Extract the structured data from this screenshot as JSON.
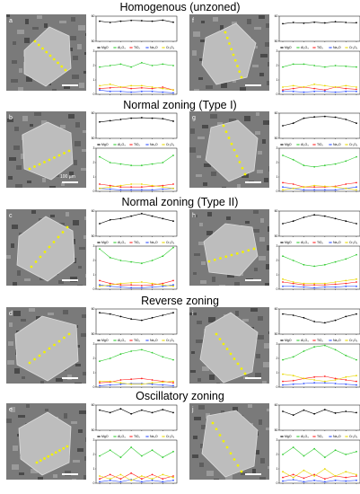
{
  "headings": {
    "homogenous": "Homogenous (unzoned)",
    "normal_type1": "Normal zoning (Type I)",
    "normal_type2": "Normal zoning (Type II)",
    "reverse": "Reverse zoning",
    "oscillatory": "Oscillatory zoning"
  },
  "colors": {
    "MgO": "#000000",
    "Al2O3": "#33cc33",
    "TiO2": "#ff2020",
    "Na2O": "#2f4fff",
    "Cr2O3": "#e8d800",
    "traverse": "#f2f200",
    "scale_bar": "#ffffff",
    "crystal": "#bdbdbd"
  },
  "legend": {
    "MgO": "MgO",
    "Al2O3": "Al₂O₃",
    "TiO2": "TiO₂",
    "Na2O": "Na₂O",
    "Cr2O3": "Cr₂O₃"
  },
  "panels": [
    {
      "label": "a",
      "extra": ""
    },
    {
      "label": "f",
      "extra": ""
    },
    {
      "label": "b",
      "extra": "100 µm"
    },
    {
      "label": "g",
      "extra": ""
    },
    {
      "label": "c",
      "extra": ""
    },
    {
      "label": "h",
      "extra": ""
    },
    {
      "label": "d",
      "extra": ""
    },
    {
      "label": "i",
      "extra": ""
    },
    {
      "label": "e",
      "extra": ""
    },
    {
      "label": "j",
      "extra": ""
    }
  ],
  "chart_data": [
    {
      "type": "line",
      "panel": "a",
      "top": {
        "ylim": [
          50,
          60
        ],
        "yticks": [
          "50",
          "60"
        ],
        "series": [
          {
            "name": "MgO",
            "values": [
              58,
              57.5,
              58,
              58.3,
              58.2,
              58,
              58.4,
              57.6
            ]
          }
        ]
      },
      "bottom": {
        "ylim": [
          0,
          3
        ],
        "yticks": [
          "0",
          "1",
          "2",
          "3"
        ],
        "series": [
          {
            "name": "Al₂O₃",
            "values": [
              1.9,
              2.0,
              2.1,
              1.9,
              2.2,
              2.0,
              2.1,
              2.0
            ]
          },
          {
            "name": "TiO₂",
            "values": [
              0.4,
              0.45,
              0.5,
              0.4,
              0.45,
              0.4,
              0.5,
              0.3
            ]
          },
          {
            "name": "Na₂O",
            "values": [
              0.3,
              0.2,
              0.2,
              0.15,
              0.2,
              0.2,
              0.15,
              0.1
            ]
          },
          {
            "name": "Cr₂O₃",
            "values": [
              0.6,
              0.7,
              0.5,
              0.6,
              0.6,
              0.5,
              0.4,
              0.3
            ]
          }
        ]
      }
    },
    {
      "type": "line",
      "panel": "f",
      "top": {
        "ylim": [
          50,
          60
        ],
        "yticks": [
          "50",
          "60"
        ],
        "series": [
          {
            "name": "MgO",
            "values": [
              57,
              57.5,
              57.2,
              57.6,
              57.3,
              57.8,
              57.5,
              57.4
            ]
          }
        ]
      },
      "bottom": {
        "ylim": [
          0,
          3
        ],
        "yticks": [
          "0",
          "1",
          "2",
          "3"
        ],
        "series": [
          {
            "name": "Al₂O₃",
            "values": [
              1.9,
              2.1,
              2.1,
              2.0,
              1.9,
              2.0,
              1.95,
              1.9
            ]
          },
          {
            "name": "TiO₂",
            "values": [
              0.3,
              0.4,
              0.5,
              0.4,
              0.3,
              0.5,
              0.4,
              0.35
            ]
          },
          {
            "name": "Na₂O",
            "values": [
              0.2,
              0.2,
              0.15,
              0.2,
              0.2,
              0.15,
              0.2,
              0.2
            ]
          },
          {
            "name": "Cr₂O₃",
            "values": [
              0.5,
              0.6,
              0.5,
              0.7,
              0.6,
              0.5,
              0.6,
              0.5
            ]
          }
        ]
      }
    },
    {
      "type": "line",
      "panel": "b",
      "top": {
        "ylim": [
          50,
          60
        ],
        "yticks": [
          "50",
          "60"
        ],
        "series": [
          {
            "name": "MgO",
            "values": [
              56.5,
              57,
              57.5,
              58,
              58.2,
              58,
              57.8,
              56.8
            ]
          }
        ]
      },
      "bottom": {
        "ylim": [
          0,
          3
        ],
        "yticks": [
          "0",
          "1",
          "2",
          "3"
        ],
        "series": [
          {
            "name": "Al₂O₃",
            "values": [
              2.4,
              2.0,
              1.9,
              1.8,
              1.8,
              1.9,
              2.0,
              2.5
            ]
          },
          {
            "name": "TiO₂",
            "values": [
              0.5,
              0.4,
              0.3,
              0.3,
              0.3,
              0.35,
              0.4,
              0.5
            ]
          },
          {
            "name": "Na₂O",
            "values": [
              0.2,
              0.15,
              0.1,
              0.1,
              0.1,
              0.1,
              0.15,
              0.2
            ]
          },
          {
            "name": "Cr₂O₃",
            "values": [
              0.2,
              0.3,
              0.4,
              0.5,
              0.5,
              0.4,
              0.3,
              0.2
            ]
          }
        ]
      }
    },
    {
      "type": "line",
      "panel": "g",
      "top": {
        "ylim": [
          50,
          60
        ],
        "yticks": [
          "50",
          "60"
        ],
        "series": [
          {
            "name": "MgO",
            "values": [
              55,
              56,
              58,
              58.5,
              58.7,
              58.4,
              57.5,
              56
            ]
          }
        ]
      },
      "bottom": {
        "ylim": [
          0,
          3
        ],
        "yticks": [
          "0",
          "1",
          "2",
          "3"
        ],
        "series": [
          {
            "name": "Al₂O₃",
            "values": [
              2.5,
              2.2,
              1.8,
              1.7,
              1.8,
              1.9,
              2.1,
              2.4
            ]
          },
          {
            "name": "TiO₂",
            "values": [
              0.6,
              0.5,
              0.3,
              0.3,
              0.3,
              0.35,
              0.5,
              0.6
            ]
          },
          {
            "name": "Na₂O",
            "values": [
              0.3,
              0.2,
              0.1,
              0.1,
              0.1,
              0.1,
              0.2,
              0.3
            ]
          },
          {
            "name": "Cr₂O₃",
            "values": [
              0.1,
              0.2,
              0.3,
              0.4,
              0.35,
              0.3,
              0.2,
              0.1
            ]
          }
        ]
      }
    },
    {
      "type": "line",
      "panel": "c",
      "top": {
        "ylim": [
          50,
          60
        ],
        "yticks": [
          "50",
          "60"
        ],
        "series": [
          {
            "name": "MgO",
            "values": [
              55,
              56.5,
              57,
              58,
              59,
              58,
              57,
              56
            ]
          }
        ]
      },
      "bottom": {
        "ylim": [
          0,
          3
        ],
        "yticks": [
          "0",
          "1",
          "2",
          "3"
        ],
        "series": [
          {
            "name": "Al₂O₃",
            "values": [
              2.8,
              2.2,
              2.0,
              1.9,
              1.8,
              2.0,
              2.3,
              2.9
            ]
          },
          {
            "name": "TiO₂",
            "values": [
              0.6,
              0.4,
              0.3,
              0.3,
              0.25,
              0.3,
              0.4,
              0.6
            ]
          },
          {
            "name": "Na₂O",
            "values": [
              0.3,
              0.2,
              0.15,
              0.1,
              0.1,
              0.15,
              0.2,
              0.3
            ]
          },
          {
            "name": "Cr₂O₃",
            "values": [
              0.2,
              0.3,
              0.4,
              0.45,
              0.5,
              0.4,
              0.3,
              0.2
            ]
          }
        ]
      }
    },
    {
      "type": "line",
      "panel": "h",
      "top": {
        "ylim": [
          50,
          60
        ],
        "yticks": [
          "50",
          "60"
        ],
        "series": [
          {
            "name": "MgO",
            "values": [
              55,
              56,
              57.5,
              58.5,
              58,
              57,
              56,
              55
            ]
          }
        ]
      },
      "bottom": {
        "ylim": [
          0,
          3
        ],
        "yticks": [
          "0",
          "1",
          "2",
          "3"
        ],
        "series": [
          {
            "name": "Al₂O₃",
            "values": [
              2.3,
              2.0,
              1.7,
              1.6,
              1.7,
              1.9,
              2.1,
              2.4
            ]
          },
          {
            "name": "TiO₂",
            "values": [
              0.5,
              0.4,
              0.3,
              0.3,
              0.3,
              0.35,
              0.4,
              0.5
            ]
          },
          {
            "name": "Na₂O",
            "values": [
              0.2,
              0.2,
              0.15,
              0.1,
              0.15,
              0.15,
              0.2,
              0.2
            ]
          },
          {
            "name": "Cr₂O₃",
            "values": [
              0.7,
              0.5,
              0.4,
              0.4,
              0.4,
              0.5,
              0.6,
              0.7
            ]
          }
        ]
      }
    },
    {
      "type": "line",
      "panel": "d",
      "top": {
        "ylim": [
          50,
          60
        ],
        "yticks": [
          "50",
          "60"
        ],
        "series": [
          {
            "name": "MgO",
            "values": [
              58.5,
              58,
              57,
              56,
              55.5,
              56.5,
              57.5,
              58.5
            ]
          }
        ]
      },
      "bottom": {
        "ylim": [
          0,
          3
        ],
        "yticks": [
          "0",
          "1",
          "2",
          "3"
        ],
        "series": [
          {
            "name": "Al₂O₃",
            "values": [
              1.8,
              2.0,
              2.3,
              2.5,
              2.6,
              2.4,
              2.1,
              1.9
            ]
          },
          {
            "name": "TiO₂",
            "values": [
              0.3,
              0.35,
              0.5,
              0.55,
              0.6,
              0.5,
              0.4,
              0.3
            ]
          },
          {
            "name": "Na₂O",
            "values": [
              0.1,
              0.15,
              0.2,
              0.25,
              0.25,
              0.2,
              0.15,
              0.1
            ]
          },
          {
            "name": "Cr₂O₃",
            "values": [
              0.4,
              0.4,
              0.3,
              0.2,
              0.2,
              0.3,
              0.35,
              0.4
            ]
          }
        ]
      }
    },
    {
      "type": "line",
      "panel": "i",
      "top": {
        "ylim": [
          50,
          60
        ],
        "yticks": [
          "50",
          "60"
        ],
        "series": [
          {
            "name": "MgO",
            "values": [
              58,
              57.5,
              56.5,
              55,
              54.5,
              55.5,
              57,
              58
            ]
          }
        ]
      },
      "bottom": {
        "ylim": [
          0,
          3
        ],
        "yticks": [
          "0",
          "1",
          "2",
          "3"
        ],
        "series": [
          {
            "name": "Al₂O₃",
            "values": [
              1.9,
              2.1,
              2.5,
              2.8,
              2.9,
              2.6,
              2.2,
              1.9
            ]
          },
          {
            "name": "TiO₂",
            "values": [
              0.4,
              0.45,
              0.6,
              0.7,
              0.75,
              0.6,
              0.5,
              0.4
            ]
          },
          {
            "name": "Na₂O",
            "values": [
              0.15,
              0.2,
              0.25,
              0.3,
              0.3,
              0.25,
              0.2,
              0.15
            ]
          },
          {
            "name": "Cr₂O₃",
            "values": [
              0.9,
              0.8,
              0.6,
              0.5,
              0.4,
              0.5,
              0.7,
              0.8
            ]
          }
        ]
      }
    },
    {
      "type": "line",
      "panel": "e",
      "top": {
        "ylim": [
          50,
          60
        ],
        "yticks": [
          "50",
          "60"
        ],
        "series": [
          {
            "name": "MgO",
            "values": [
              58,
              57,
              58.5,
              56.5,
              58,
              57,
              58.2,
              57
            ]
          }
        ]
      },
      "bottom": {
        "ylim": [
          0,
          3
        ],
        "yticks": [
          "0",
          "1",
          "2",
          "3"
        ],
        "series": [
          {
            "name": "Al₂O₃",
            "values": [
              1.9,
              2.3,
              1.8,
              2.5,
              1.9,
              2.3,
              1.8,
              2.2
            ]
          },
          {
            "name": "TiO₂",
            "values": [
              0.3,
              0.6,
              0.3,
              0.7,
              0.3,
              0.6,
              0.3,
              0.5
            ]
          },
          {
            "name": "Na₂O",
            "values": [
              0.1,
              0.2,
              0.1,
              0.25,
              0.1,
              0.2,
              0.1,
              0.2
            ]
          },
          {
            "name": "Cr₂O₃",
            "values": [
              0.5,
              0.3,
              0.6,
              0.2,
              0.5,
              0.3,
              0.6,
              0.4
            ]
          }
        ]
      }
    },
    {
      "type": "line",
      "panel": "j",
      "top": {
        "ylim": [
          50,
          60
        ],
        "yticks": [
          "50",
          "60"
        ],
        "series": [
          {
            "name": "MgO",
            "values": [
              57.5,
              56,
              58,
              56.5,
              58.2,
              56.8,
              57.5,
              57
            ]
          }
        ]
      },
      "bottom": {
        "ylim": [
          0,
          3
        ],
        "yticks": [
          "0",
          "1",
          "2",
          "3"
        ],
        "series": [
          {
            "name": "Al₂O₃",
            "values": [
              2.0,
              2.5,
              1.9,
              2.4,
              1.8,
              2.3,
              2.0,
              2.2
            ]
          },
          {
            "name": "TiO₂",
            "values": [
              0.4,
              0.6,
              0.35,
              0.6,
              0.3,
              0.5,
              0.4,
              0.5
            ]
          },
          {
            "name": "Na₂O",
            "values": [
              0.15,
              0.25,
              0.1,
              0.2,
              0.1,
              0.2,
              0.15,
              0.2
            ]
          },
          {
            "name": "Cr₂O₃",
            "values": [
              0.8,
              0.4,
              0.9,
              0.5,
              1.0,
              0.5,
              0.8,
              0.6
            ]
          }
        ]
      }
    }
  ]
}
